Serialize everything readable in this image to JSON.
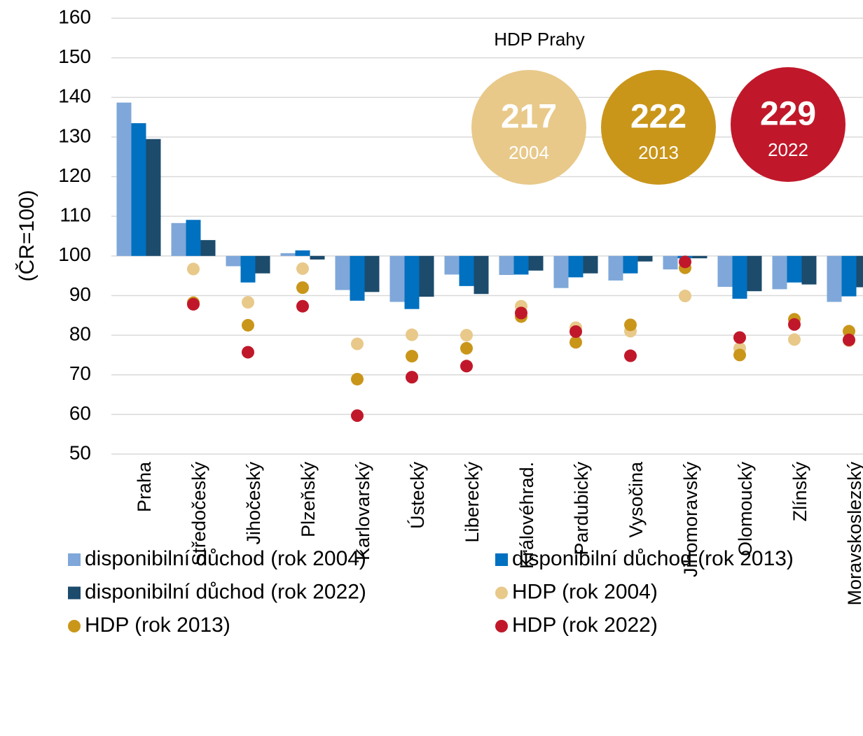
{
  "chart_data": {
    "type": "bar",
    "y_label": "(ČR=100)",
    "ylim": [
      50,
      160
    ],
    "yticks": [
      50,
      60,
      70,
      80,
      90,
      100,
      110,
      120,
      130,
      140,
      150,
      160
    ],
    "bar_baseline": 100,
    "grid": true,
    "categories": [
      "Praha",
      "Středočeský",
      "Jihočeský",
      "Plzeňský",
      "Karlovarský",
      "Ústecký",
      "Liberecký",
      "Královéhrad.",
      "Pardubický",
      "Vysočina",
      "Jihomoravský",
      "Olomoucký",
      "Zlínský",
      "Moravskoslezský"
    ],
    "series": [
      {
        "name": "disponibilní důchod (rok 2004)",
        "mark": "bar",
        "color": "#7fa7d9",
        "values": [
          138.7,
          108.3,
          97.4,
          100.7,
          91.4,
          88.4,
          95.3,
          95.2,
          91.9,
          93.8,
          96.6,
          92.2,
          91.6,
          88.4
        ]
      },
      {
        "name": "disponibilní důchod (rok 2013)",
        "mark": "bar",
        "color": "#0070c0",
        "values": [
          133.5,
          109.1,
          93.3,
          101.4,
          88.7,
          86.6,
          92.4,
          95.3,
          94.6,
          95.6,
          99.4,
          89.2,
          93.3,
          89.8
        ]
      },
      {
        "name": "disponibilní důchod (rok 2022)",
        "mark": "bar",
        "color": "#1c4b6c",
        "values": [
          129.5,
          104.0,
          95.6,
          99.1,
          90.9,
          89.7,
          90.4,
          96.3,
          95.6,
          98.6,
          99.4,
          91.1,
          92.8,
          92.1
        ]
      },
      {
        "name": "HDP (rok 2004)",
        "mark": "dot",
        "color": "#e8c98a",
        "values": [
          null,
          96.7,
          88.3,
          96.8,
          77.8,
          80.1,
          80.0,
          87.3,
          81.9,
          81.0,
          89.9,
          76.7,
          78.9,
          78.6
        ]
      },
      {
        "name": "HDP (rok 2013)",
        "mark": "dot",
        "color": "#c9961a",
        "values": [
          null,
          88.2,
          82.5,
          92.0,
          68.9,
          74.7,
          76.7,
          84.7,
          78.2,
          82.6,
          97.0,
          75.0,
          84.0,
          81.0
        ]
      },
      {
        "name": "HDP (rok 2022)",
        "mark": "dot",
        "color": "#c0182a",
        "values": [
          null,
          87.8,
          75.7,
          87.3,
          59.7,
          69.4,
          72.2,
          85.6,
          80.9,
          74.8,
          98.5,
          79.4,
          82.7,
          78.8
        ]
      }
    ],
    "praha_hdp": {
      "title": "HDP Prahy",
      "items": [
        {
          "value": 217,
          "year": "2004",
          "color": "#e8c98a"
        },
        {
          "value": 222,
          "year": "2013",
          "color": "#c9961a"
        },
        {
          "value": 229,
          "year": "2022",
          "color": "#c0182a"
        }
      ]
    }
  }
}
